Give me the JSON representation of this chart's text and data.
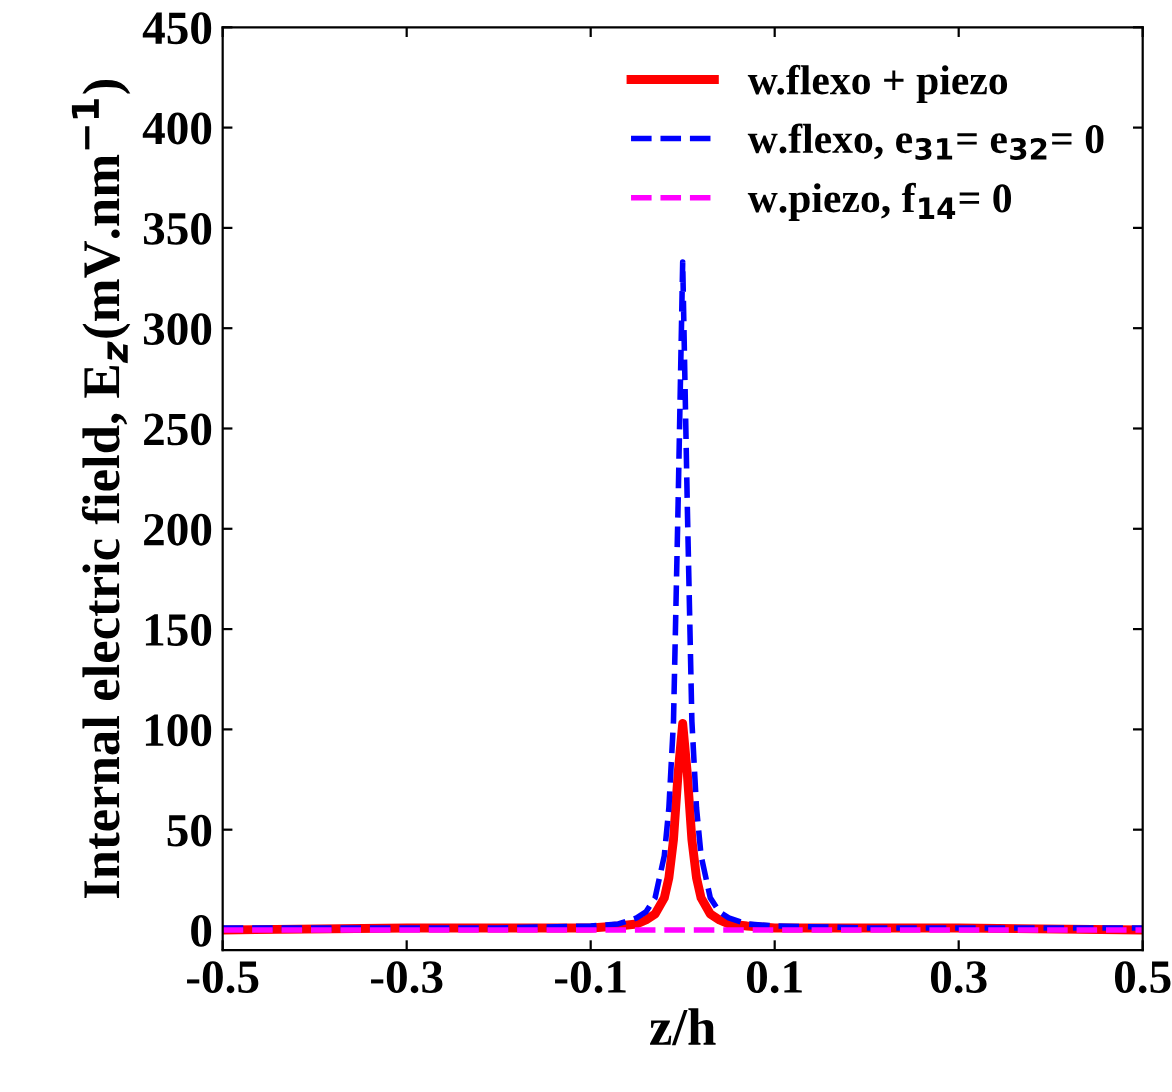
{
  "chart_data": {
    "type": "line",
    "xlabel": "z/h",
    "ylabel": "Internal electric field, E$_{z}$(mV.nm$^{−1}$)",
    "xlim": [
      -0.5,
      0.5
    ],
    "xticks": [
      -0.5,
      -0.3,
      -0.1,
      0.1,
      0.3,
      0.5
    ],
    "ylim": [
      -10,
      450
    ],
    "yticks": [
      0,
      50,
      100,
      150,
      200,
      250,
      300,
      350,
      400,
      450
    ],
    "grid": false,
    "legend": "top right",
    "series": [
      {
        "name": "w.flexo + piezo",
        "color": "#ff0000",
        "line_style": "solid",
        "x": [
          -0.5,
          -0.3,
          -0.2,
          -0.1,
          -0.07,
          -0.05,
          -0.04,
          -0.03,
          -0.02,
          -0.015,
          -0.01,
          -0.005,
          0,
          0.005,
          0.01,
          0.015,
          0.02,
          0.03,
          0.04,
          0.05,
          0.07,
          0.1,
          0.2,
          0.3,
          0.5
        ],
        "values": [
          0,
          1,
          1,
          1,
          2,
          3,
          5,
          8,
          16,
          26,
          45,
          78,
          103,
          78,
          45,
          26,
          16,
          8,
          5,
          3,
          2,
          1,
          1,
          1,
          0
        ]
      },
      {
        "name": "w.flexo, e$_{31}$= e$_{32}$= 0",
        "color": "#0000ff",
        "line_style": "dashed",
        "x": [
          -0.5,
          -0.3,
          -0.2,
          -0.1,
          -0.07,
          -0.05,
          -0.04,
          -0.03,
          -0.02,
          -0.015,
          -0.01,
          -0.005,
          0,
          0.005,
          0.01,
          0.015,
          0.02,
          0.03,
          0.04,
          0.05,
          0.07,
          0.1,
          0.2,
          0.3,
          0.5
        ],
        "values": [
          1,
          1,
          1,
          2,
          3,
          6,
          9,
          16,
          37,
          61,
          104,
          212,
          333,
          212,
          104,
          61,
          37,
          16,
          9,
          6,
          3,
          2,
          1,
          1,
          1
        ]
      },
      {
        "name": "w.piezo, f$_{14}$= 0",
        "color": "#ff00ff",
        "line_style": "dashed",
        "x": [
          -0.5,
          0.5
        ],
        "values": [
          0,
          0
        ]
      }
    ]
  }
}
